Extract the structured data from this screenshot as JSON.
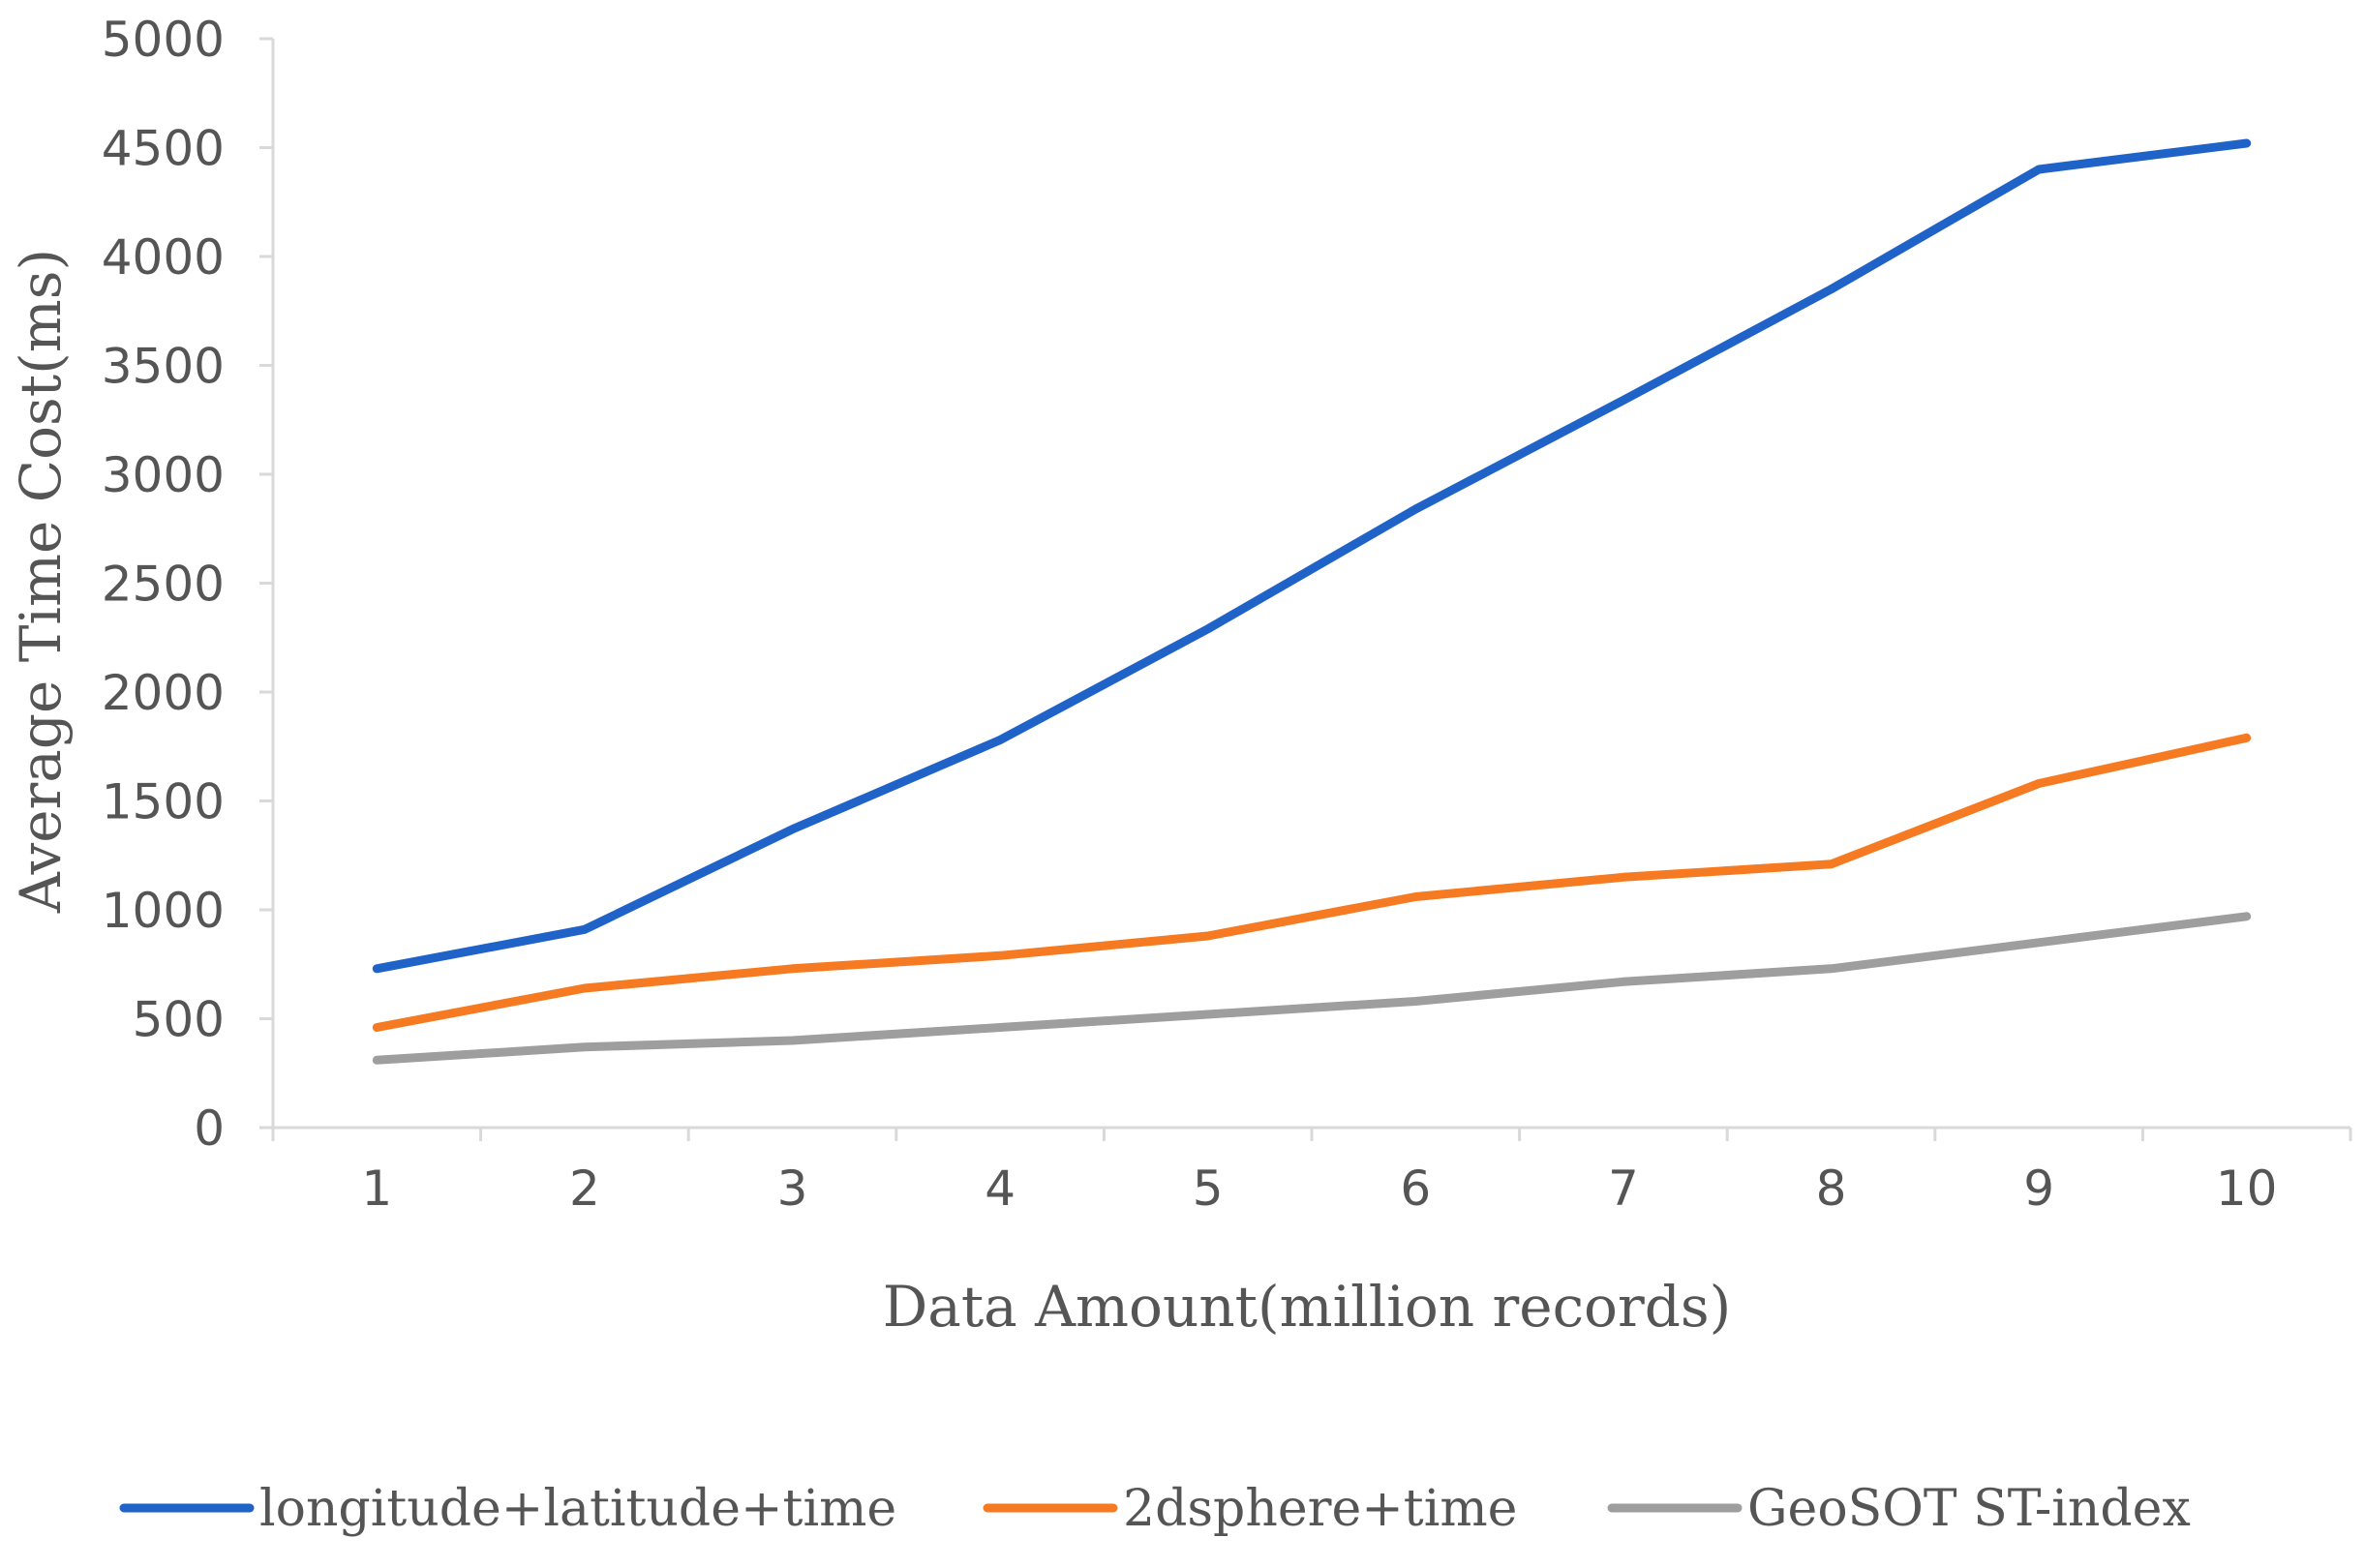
{
  "chart_data": {
    "type": "line",
    "x": [
      1,
      2,
      3,
      4,
      5,
      6,
      7,
      8,
      9,
      10
    ],
    "categories": [
      "1",
      "2",
      "3",
      "4",
      "5",
      "6",
      "7",
      "8",
      "9",
      "10"
    ],
    "series": [
      {
        "name": "longitude+latitude+time",
        "color": "#1f62c8",
        "values": [
          730,
          910,
          1370,
          1780,
          2290,
          2840,
          3340,
          3850,
          4400,
          4520
        ]
      },
      {
        "name": "2dsphere+time",
        "color": "#f57a22",
        "values": [
          460,
          640,
          730,
          790,
          880,
          1060,
          1150,
          1210,
          1580,
          1790
        ]
      },
      {
        "name": "GeoSOT ST-index",
        "color": "#9e9e9e",
        "values": [
          310,
          370,
          400,
          460,
          520,
          580,
          670,
          730,
          850,
          970
        ]
      }
    ],
    "xlabel": "Data Amount(million records)",
    "ylabel": "Average Time Cost(ms)",
    "ylim": [
      0,
      5000
    ],
    "yticks": [
      0,
      500,
      1000,
      1500,
      2000,
      2500,
      3000,
      3500,
      4000,
      4500,
      5000
    ],
    "grid": false,
    "legend_position": "bottom"
  }
}
